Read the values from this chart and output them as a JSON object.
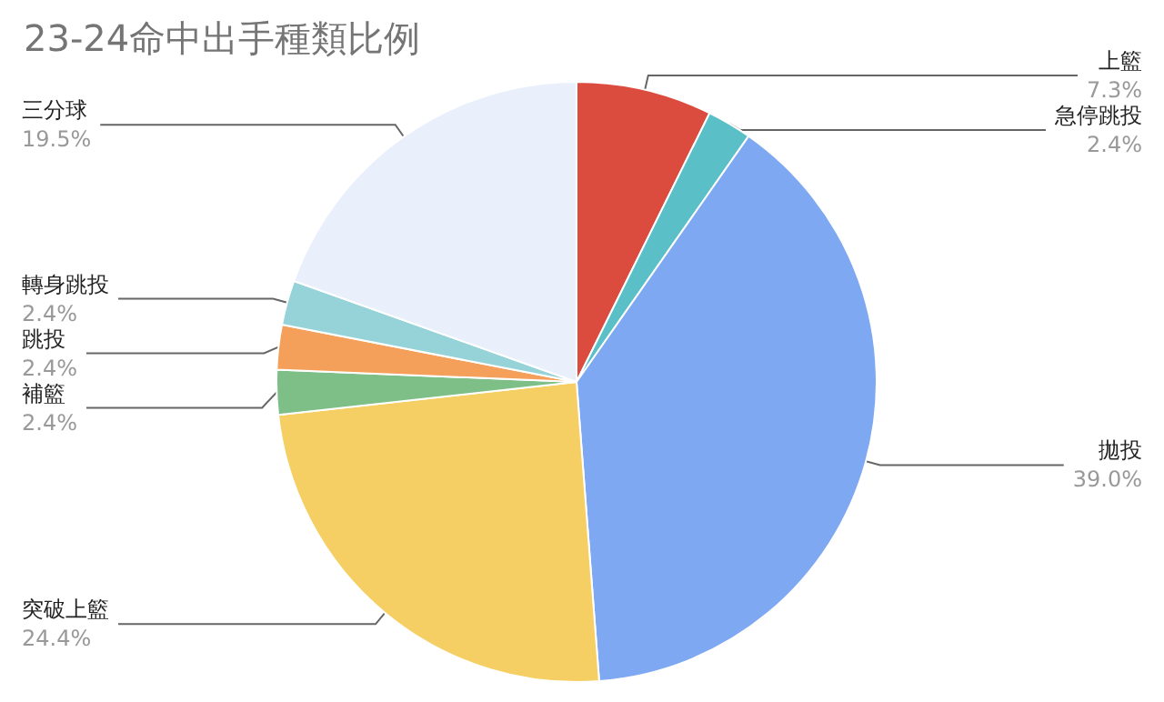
{
  "chart_data": {
    "type": "pie",
    "title": "23-24命中出手種類比例",
    "categories": [
      "上籃",
      "急停跳投",
      "拋投",
      "突破上籃",
      "補籃",
      "跳投",
      "轉身跳投",
      "三分球"
    ],
    "values": [
      7.3,
      2.4,
      39.0,
      24.4,
      2.4,
      2.4,
      2.4,
      19.5
    ],
    "value_labels": [
      "7.3%",
      "2.4%",
      "39.0%",
      "24.4%",
      "2.4%",
      "2.4%",
      "2.4%",
      "19.5%"
    ],
    "colors": [
      "#db4c3f",
      "#5bbfc8",
      "#7ea8f1",
      "#f5cf63",
      "#7dbf87",
      "#f4a05a",
      "#95d3d8",
      "#e9f0fc"
    ],
    "legend": false
  }
}
